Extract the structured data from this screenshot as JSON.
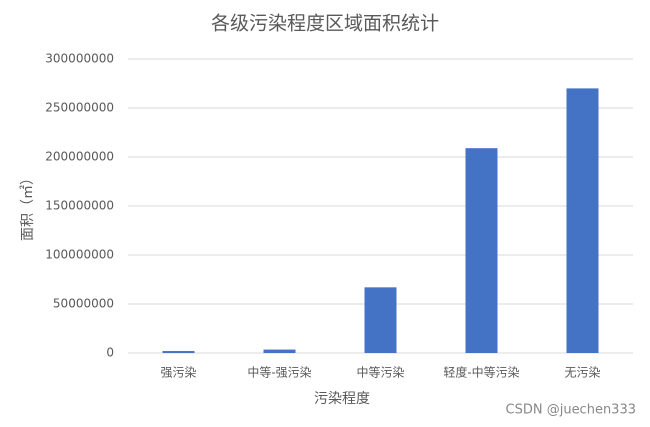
{
  "chart_data": {
    "type": "bar",
    "title": "各级污染程度区域面积统计",
    "x_label": "污染程度",
    "y_label": "面积（㎡）",
    "categories": [
      "强污染",
      "中等-强污染",
      "中等污染",
      "轻度-中等污染",
      "无污染"
    ],
    "values": [
      2000000,
      3500000,
      67000000,
      209000000,
      270000000
    ],
    "color": "#4472c4",
    "ylim": [
      0,
      300000000
    ],
    "yticks": [
      0,
      50000000,
      100000000,
      150000000,
      200000000,
      250000000,
      300000000
    ],
    "grid": true
  },
  "watermark": "CSDN @juechen333"
}
